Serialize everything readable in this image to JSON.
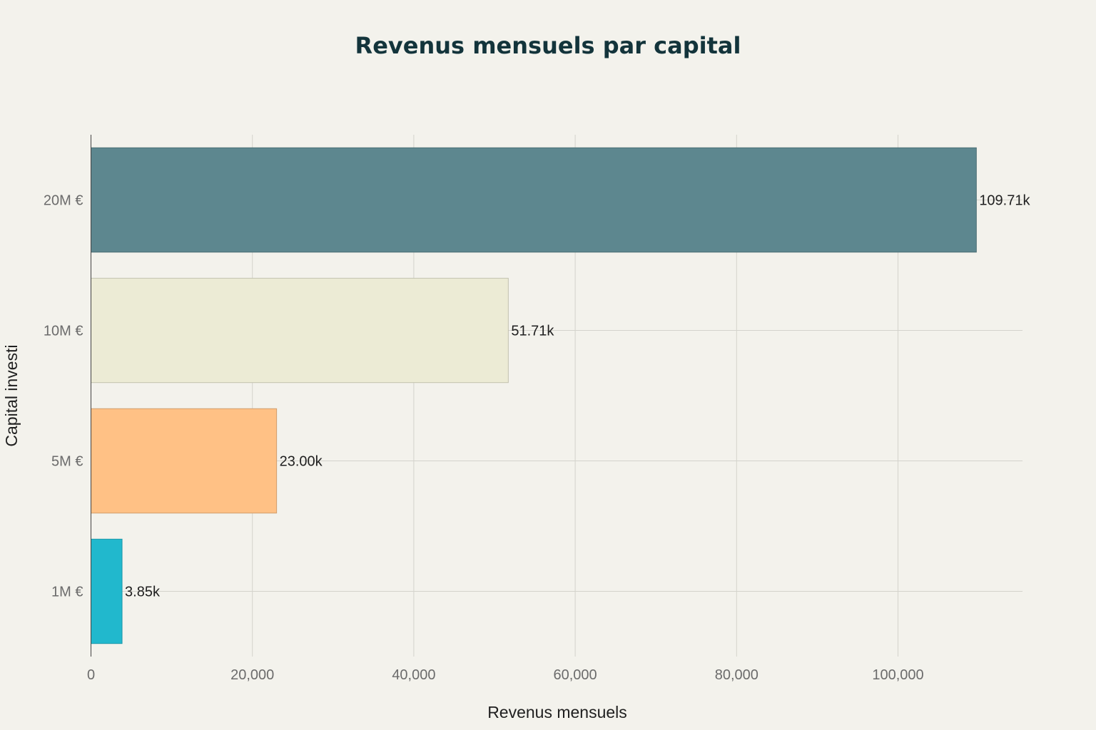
{
  "chart_data": {
    "type": "bar",
    "orientation": "horizontal",
    "title": "Revenus mensuels par capital",
    "xlabel": "Revenus mensuels",
    "ylabel": "Capital investi",
    "categories": [
      "1M €",
      "5M €",
      "10M €",
      "20M €"
    ],
    "values": [
      3850,
      23000,
      51710,
      109710
    ],
    "data_labels": [
      "3.85k",
      "23.00k",
      "51.71k",
      "109.71k"
    ],
    "colors": [
      "#21B8CD",
      "#FFC185",
      "#ECEBD5",
      "#5D878F"
    ],
    "x_ticks": [
      0,
      20000,
      40000,
      60000,
      80000,
      100000
    ],
    "x_tick_labels": [
      "0",
      "20,000",
      "40,000",
      "60,000",
      "80,000",
      "100,000"
    ],
    "xlim": [
      0,
      115500
    ],
    "grid": true,
    "legend": "none"
  }
}
